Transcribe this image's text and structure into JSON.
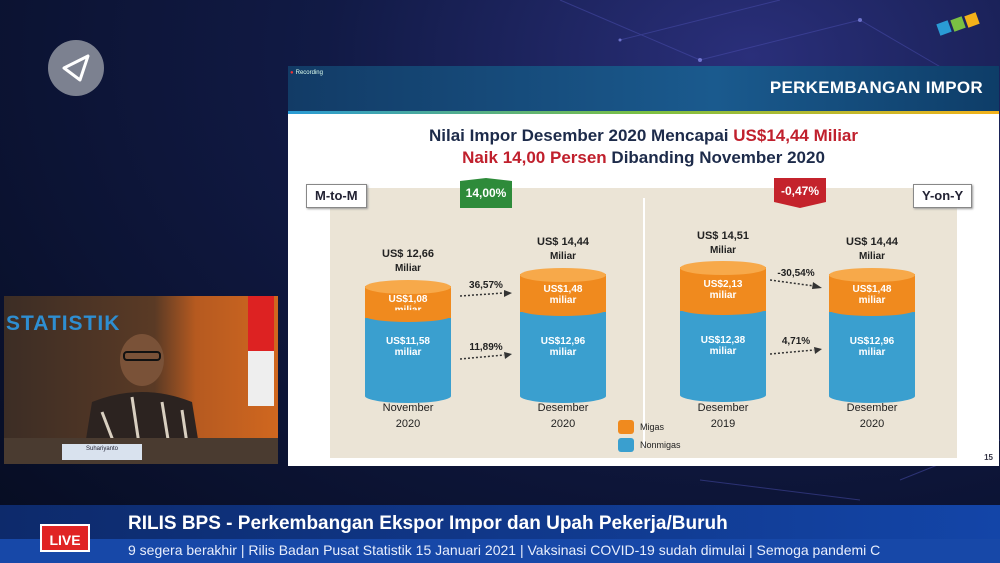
{
  "slide": {
    "recording_label": "Recording",
    "title": "PERKEMBANGAN IMPOR",
    "headline1_prefix": "Nilai Impor Desember 2020 Mencapai ",
    "headline1_highlight": "US$14,44 Miliar",
    "headline2_highlight": "Naik 14,00 Persen",
    "headline2_suffix": " Dibanding November 2020",
    "mtom_label": "M-to-M",
    "yony_label": "Y-on-Y",
    "mtom_change": "14,00%",
    "yony_change": "-0,47%",
    "page_number": "15",
    "columns": [
      {
        "top_value": "US$ 12,66",
        "top_unit": "Miliar",
        "migas_value": "US$1,08",
        "migas_unit": "miliar",
        "non_value": "US$11,58",
        "non_unit": "miliar",
        "period": "November",
        "year": "2020"
      },
      {
        "top_value": "US$ 14,44",
        "top_unit": "Miliar",
        "migas_value": "US$1,48",
        "migas_unit": "miliar",
        "non_value": "US$12,96",
        "non_unit": "miliar",
        "period": "Desember",
        "year": "2020"
      },
      {
        "top_value": "US$ 14,51",
        "top_unit": "Miliar",
        "migas_value": "US$2,13",
        "migas_unit": "miliar",
        "non_value": "US$12,38",
        "non_unit": "miliar",
        "period": "Desember",
        "year": "2019"
      },
      {
        "top_value": "US$ 14,44",
        "top_unit": "Miliar",
        "migas_value": "US$1,48",
        "migas_unit": "miliar",
        "non_value": "US$12,96",
        "non_unit": "miliar",
        "period": "Desember",
        "year": "2020"
      }
    ],
    "arrows": {
      "mtom_migas": "36,57%",
      "mtom_non": "11,89%",
      "yony_migas": "-30,54%",
      "yony_non": "4,71%"
    },
    "legend": {
      "migas": "Migas",
      "nonmigas": "Nonmigas"
    },
    "colors": {
      "migas": "#f08a1e",
      "nonmigas": "#3a9fcf",
      "up": "#2e8b3a",
      "down": "#c4232c"
    }
  },
  "video": {
    "banner": "STATISTIK",
    "nameplate": "Suhariyanto"
  },
  "ticker": {
    "live": "LIVE",
    "headline": "RILIS BPS  - Perkembangan Ekspor Impor dan Upah Pekerja/Buruh",
    "crawl": "9 segera berakhir | Rilis Badan Pusat Statistik 15 Januari 2021 | Vaksinasi COVID-19 sudah dimulai | Semoga pandemi C"
  }
}
